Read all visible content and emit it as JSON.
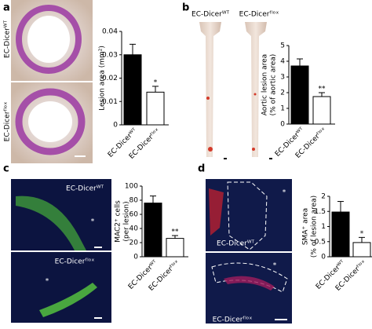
{
  "panels": [
    {
      "label": "a",
      "image_labels": [
        "EC-Dicerᵂᵀ",
        "EC-Dicerᶠˡᵒˣ"
      ]
    },
    {
      "label": "b",
      "image_labels": [
        "EC-Dicerᵂᵀ",
        "EC-Dicerᶠˡᵒˣ"
      ]
    },
    {
      "label": "c",
      "image_labels": [
        "EC-Dicerᵂᵀ",
        "EC-Dicerᶠˡᵒˣ"
      ],
      "marker": "*"
    },
    {
      "label": "d",
      "image_labels": [
        "EC-Dicerᵂᵀ",
        "EC-Dicerᶠˡᵒˣ"
      ],
      "marker": "*"
    }
  ],
  "chart_data": [
    {
      "type": "bar",
      "ylabel": [
        "Lesion area (mm²)"
      ],
      "categories": [
        "EC-Dicerᵂᵀ",
        "EC-Dicerᶠˡᵒˣ"
      ],
      "values": [
        0.03,
        0.014
      ],
      "errors": [
        0.0045,
        0.0025
      ],
      "significance": [
        null,
        "*"
      ],
      "colors": [
        "#000000",
        "#ffffff"
      ],
      "ylim": [
        0,
        0.04
      ],
      "yticks": [
        0,
        0.01,
        0.02,
        0.03,
        0.04
      ]
    },
    {
      "type": "bar",
      "ylabel": [
        "Aortic lesion area",
        "(% of aortic area)"
      ],
      "categories": [
        "EC-Dicerᵂᵀ",
        "EC-Dicerᶠˡᵒˣ"
      ],
      "values": [
        3.7,
        1.75
      ],
      "errors": [
        0.45,
        0.25
      ],
      "significance": [
        null,
        "**"
      ],
      "colors": [
        "#000000",
        "#ffffff"
      ],
      "ylim": [
        0,
        5
      ],
      "yticks": [
        0,
        1,
        2,
        3,
        4,
        5
      ]
    },
    {
      "type": "bar",
      "ylabel": [
        "MAC2⁺ cells",
        "(per lesion)"
      ],
      "categories": [
        "EC-Dicerᵂᵀ",
        "EC-Dicerᶠˡᵒˣ"
      ],
      "values": [
        76,
        26
      ],
      "errors": [
        10,
        4
      ],
      "significance": [
        null,
        "**"
      ],
      "colors": [
        "#000000",
        "#ffffff"
      ],
      "ylim": [
        0,
        100
      ],
      "yticks": [
        0,
        20,
        40,
        60,
        80,
        100
      ]
    },
    {
      "type": "bar",
      "ylabel": [
        "SMA⁺ area",
        "(% of lesion area)"
      ],
      "categories": [
        "EC-Dicerᵂᵀ",
        "EC-Dicerᶠˡᵒˣ"
      ],
      "values": [
        1.48,
        0.47
      ],
      "errors": [
        0.35,
        0.17
      ],
      "significance": [
        null,
        "*"
      ],
      "colors": [
        "#000000",
        "#ffffff"
      ],
      "ylim": [
        0,
        2
      ],
      "yticks": [
        0,
        0.5,
        1,
        1.5,
        2
      ]
    }
  ]
}
